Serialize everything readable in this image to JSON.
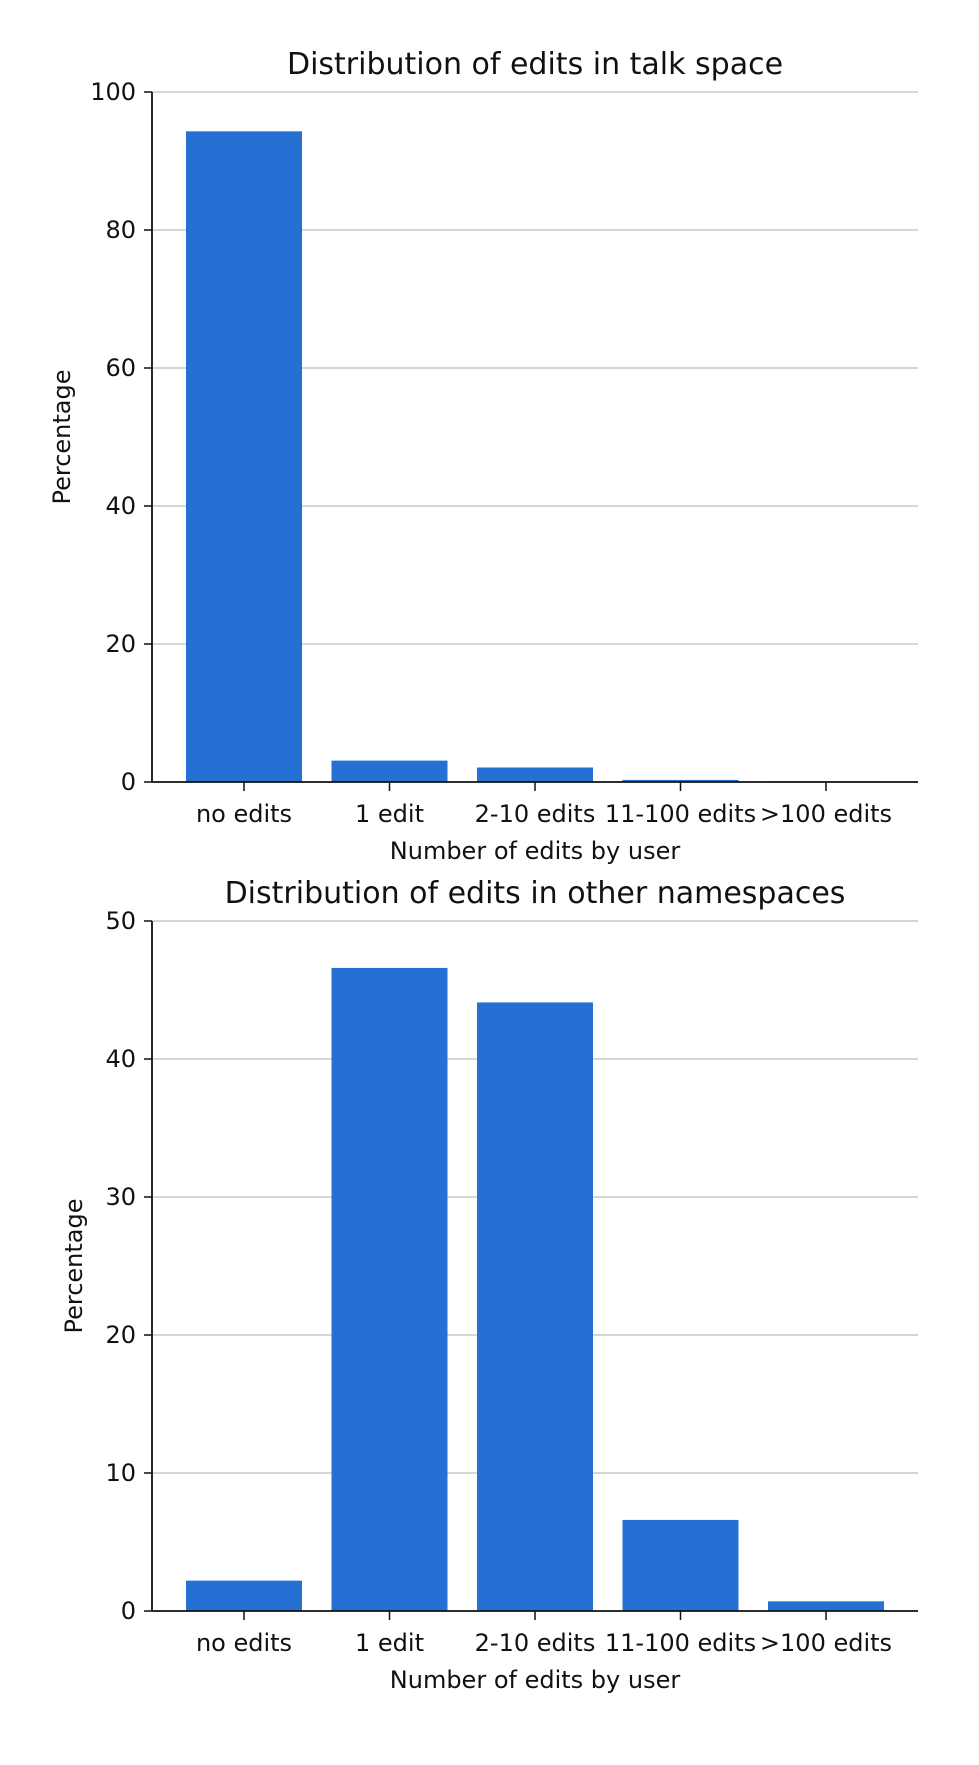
{
  "chart_data": [
    {
      "type": "bar",
      "title": "Distribution of edits in talk space",
      "xlabel": "Number of edits by user",
      "ylabel": "Percentage",
      "categories": [
        "no edits",
        "1 edit",
        "2-10 edits",
        "11-100 edits",
        ">100 edits"
      ],
      "values": [
        94.3,
        3.1,
        2.1,
        0.3,
        0.1
      ],
      "ylim": [
        0,
        100
      ],
      "yticks": [
        0,
        20,
        40,
        60,
        80,
        100
      ],
      "grid": true,
      "color": "#2471d3"
    },
    {
      "type": "bar",
      "title": "Distribution of edits in other namespaces",
      "xlabel": "Number of edits by user",
      "ylabel": "Percentage",
      "categories": [
        "no edits",
        "1 edit",
        "2-10 edits",
        "11-100 edits",
        ">100 edits"
      ],
      "values": [
        2.2,
        46.6,
        44.1,
        6.6,
        0.7
      ],
      "ylim": [
        0,
        50
      ],
      "yticks": [
        0,
        10,
        20,
        30,
        40,
        50
      ],
      "grid": true,
      "color": "#2471d3"
    }
  ]
}
